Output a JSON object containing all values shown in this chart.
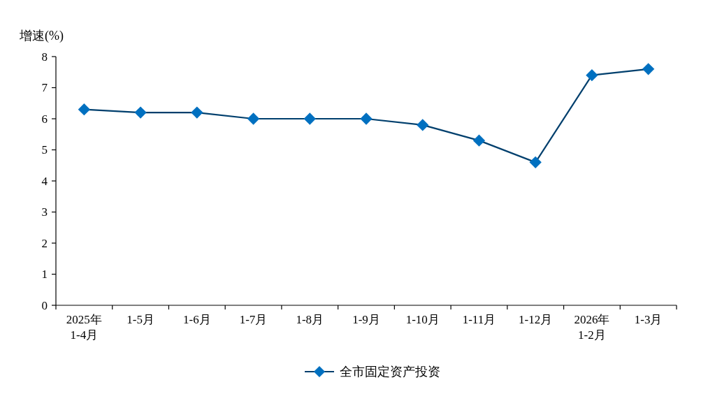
{
  "chart_data": {
    "type": "line",
    "ylabel": "增速(%)",
    "categories": [
      "2025年\n1-4月",
      "1-5月",
      "1-6月",
      "1-7月",
      "1-8月",
      "1-9月",
      "1-10月",
      "1-11月",
      "1-12月",
      "2026年\n1-2月",
      "1-3月"
    ],
    "series": [
      {
        "name": "全市固定资产投资",
        "color": "#0070c0",
        "values": [
          6.3,
          6.2,
          6.2,
          6.0,
          6.0,
          6.0,
          5.8,
          5.3,
          4.6,
          7.4,
          7.6
        ]
      }
    ],
    "ylim": [
      0,
      8
    ],
    "yticks": [
      0,
      1,
      2,
      3,
      4,
      5,
      6,
      7,
      8
    ],
    "grid": false,
    "legend": "bottom",
    "marker": "diamond",
    "line_style": "solid"
  }
}
